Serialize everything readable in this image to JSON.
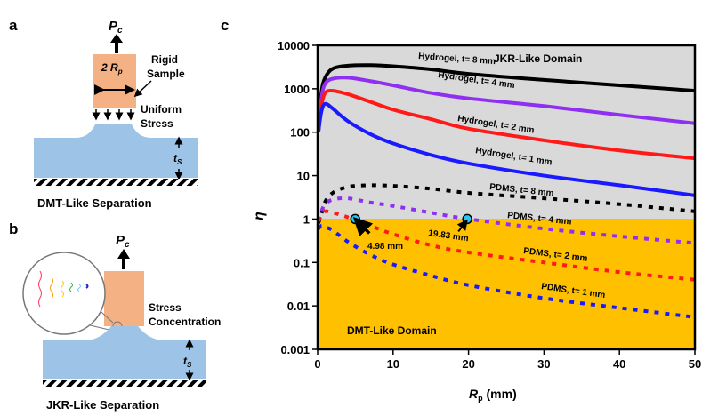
{
  "panels": {
    "a": {
      "letter": "a",
      "force": "P",
      "force_sub": "c",
      "width_label": "2 R",
      "width_sub": "p",
      "sample_label_1": "Rigid",
      "sample_label_2": "Sample",
      "stress_label_1": "Uniform",
      "stress_label_2": "Stress",
      "thickness": "t",
      "thickness_sub": "S",
      "caption": "DMT-Like Separation"
    },
    "b": {
      "letter": "b",
      "force": "P",
      "force_sub": "c",
      "stress_label_1": "Stress",
      "stress_label_2": "Concentration",
      "thickness": "t",
      "thickness_sub": "S",
      "caption": "JKR-Like Separation"
    },
    "c": {
      "letter": "c"
    }
  },
  "colors": {
    "jkr_region": "#d9d9d9",
    "dmt_region": "#ffc000",
    "substrate": "#9dc3e6",
    "sample": "#f4b183",
    "marker": "#29c5f6"
  },
  "chart_data": {
    "type": "line",
    "xlabel": "R",
    "xlabel_sub": "p",
    "xlabel_unit": " (mm)",
    "ylabel": "η",
    "xlim": [
      0,
      50
    ],
    "ylim": [
      0.001,
      10000
    ],
    "yscale": "log",
    "xticks": [
      "0",
      "10",
      "20",
      "30",
      "40",
      "50"
    ],
    "yticks": [
      "0.001",
      "0.01",
      "0.1",
      "1",
      "10",
      "100",
      "1000",
      "10000"
    ],
    "regions": [
      {
        "label": "JKR-Like Domain",
        "range": [
          1,
          10000
        ]
      },
      {
        "label": "DMT-Like Domain",
        "range": [
          0.001,
          1
        ]
      }
    ],
    "x": [
      0.1,
      0.5,
      1,
      2,
      4,
      7,
      10,
      15,
      20,
      30,
      40,
      50
    ],
    "series": [
      {
        "name": "Hydrogel, t= 8 mm",
        "style": "solid",
        "color": "#000000",
        "values": [
          100,
          800,
          1800,
          2900,
          3400,
          3500,
          3300,
          2800,
          2200,
          1600,
          1200,
          900
        ]
      },
      {
        "name": "Hydrogel, t= 4 mm",
        "style": "solid",
        "color": "#8f2ff2",
        "values": [
          100,
          600,
          1300,
          1700,
          1800,
          1500,
          1200,
          800,
          600,
          400,
          250,
          160
        ]
      },
      {
        "name": "Hydrogel, t= 2 mm",
        "style": "solid",
        "color": "#ff1a1a",
        "values": [
          100,
          400,
          800,
          900,
          750,
          500,
          330,
          200,
          120,
          65,
          38,
          25
        ]
      },
      {
        "name": "Hydrogel, t= 1 mm",
        "style": "solid",
        "color": "#1a1aff",
        "values": [
          100,
          300,
          450,
          350,
          180,
          90,
          55,
          30,
          19,
          10,
          6,
          3.5
        ]
      },
      {
        "name": "PDMS, t= 8 mm",
        "style": "dashed",
        "color": "#000000",
        "values": [
          0.8,
          1.3,
          2.5,
          4,
          5.5,
          6,
          5.8,
          5,
          4,
          3,
          2.2,
          1.5
        ]
      },
      {
        "name": "PDMS, t= 4 mm",
        "style": "dashed",
        "color": "#8f2ff2",
        "values": [
          0.9,
          1.5,
          2.2,
          2.8,
          3,
          2.4,
          2,
          1.4,
          1,
          0.6,
          0.4,
          0.28
        ]
      },
      {
        "name": "PDMS, t= 2 mm",
        "style": "dashed",
        "color": "#ff1a1a",
        "values": [
          0.9,
          1.2,
          1.5,
          1.4,
          1.1,
          0.7,
          0.45,
          0.25,
          0.17,
          0.1,
          0.06,
          0.04
        ]
      },
      {
        "name": "PDMS, t= 1 mm",
        "style": "dashed",
        "color": "#1a1aff",
        "values": [
          0.6,
          0.7,
          0.65,
          0.55,
          0.3,
          0.15,
          0.09,
          0.05,
          0.03,
          0.015,
          0.009,
          0.0055
        ]
      }
    ],
    "annotations": [
      {
        "label": "4.98 mm",
        "x": 4.98,
        "y": 1
      },
      {
        "label": "19.83 mm",
        "x": 19.83,
        "y": 1
      }
    ]
  }
}
